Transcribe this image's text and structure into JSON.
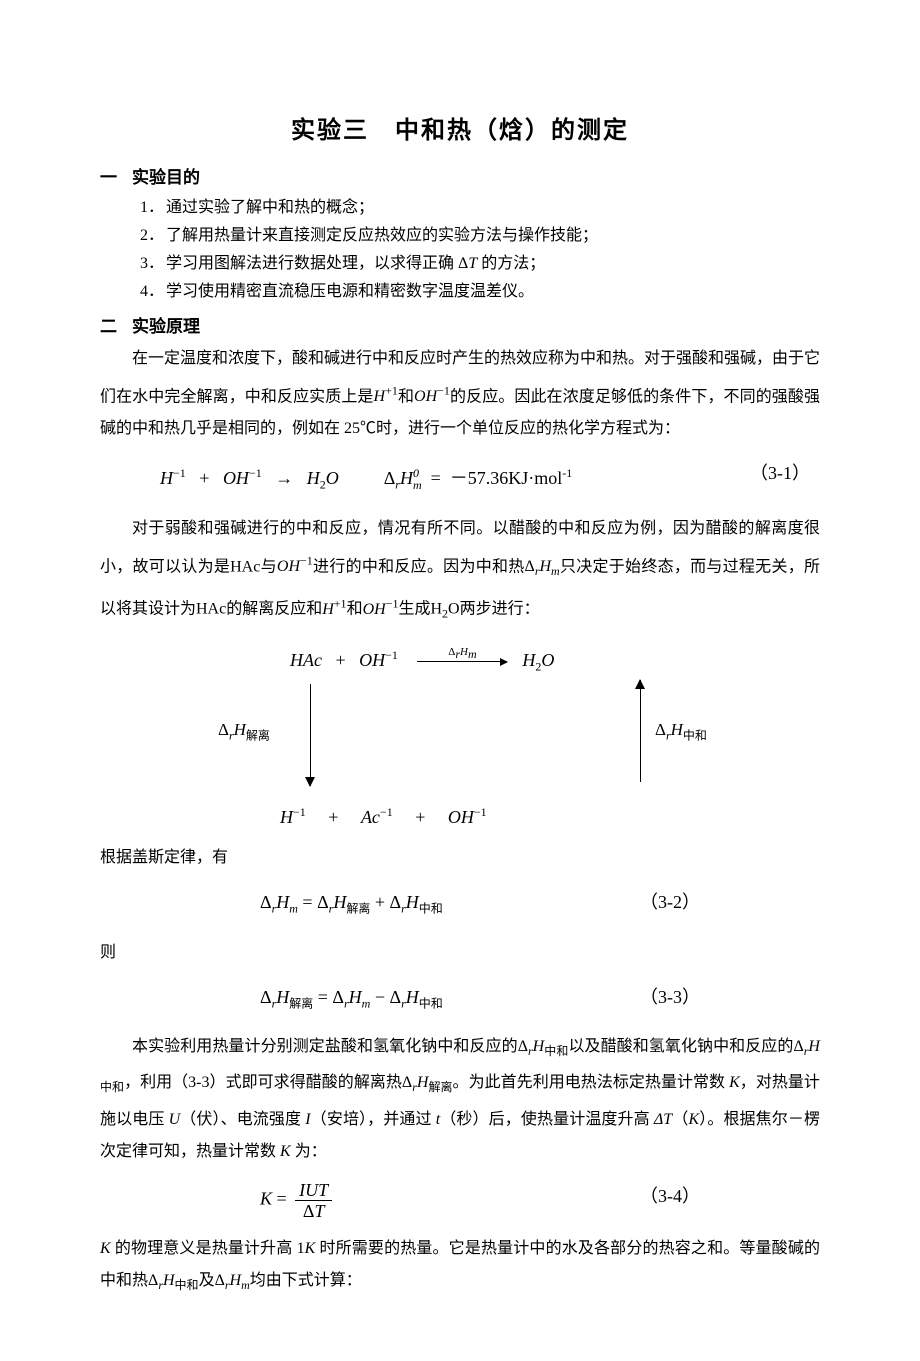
{
  "title": "实验三　中和热（焓）的测定",
  "s1_head_num": "一",
  "s1_head": "实验目的",
  "obj1": "通过实验了解中和热的概念；",
  "obj2": "了解用热量计来直接测定反应热效应的实验方法与操作技能；",
  "obj3_a": "学习用图解法进行数据处理，以求得正确 Δ",
  "obj3_b": " 的方法；",
  "obj4": "学习使用精密直流稳压电源和精密数字温度温差仪。",
  "s2_head_num": "二",
  "s2_head": "实验原理",
  "p1": "在一定温度和浓度下，酸和碱进行中和反应时产生的热效应称为中和热。对于强酸和强碱，由于它们在水中完全解离，中和反应实质上是",
  "p1b": "的反应。因此在浓度足够低的条件下，不同的强酸强碱的中和热几乎是相同的，例如在 25℃时，进行一个单位反应的热化学方程式为：",
  "eq1_rhs": "－57.36KJ·mol",
  "eq1_num": "（3-1）",
  "p2a": "对于弱酸和强碱进行的中和反应，情况有所不同。以醋酸的中和反应为例，因为醋酸的解离度很小，故可以认为是HAc与",
  "p2b": "进行的中和反应。因为中和热",
  "p2c": "只决定于始终态，而与过程无关，所以将其设计为HAc的解离反应和",
  "p2d": "生成H",
  "p2e": "O两步进行：",
  "cycle_top_lbl": "Δ",
  "p3": "根据盖斯定律，有",
  "eq2_num": "（3-2）",
  "p4": "则",
  "eq3_num": "（3-3）",
  "p5a": "本实验利用热量计分别测定盐酸和氢氧化钠中和反应的",
  "p5b": "以及醋酸和氢氧化钠中和反应的",
  "p5c": "，利用（3-3）式即可求得醋酸的解离热",
  "p5d": "。为此首先利用电热法标定热量计常数",
  "p5e": "，对热量计施以电压",
  "p5f": "（伏）、电流强度",
  "p5g": "（安培），并通过",
  "p5h": "（秒）后，使热量计温度升高",
  "p5i": "（",
  "p5j": "）。根据焦尔－楞次定律可知，热量计常数",
  "p5k": "为：",
  "eq4_num": "（3-4）",
  "p6a": "的物理意义是热量计升高 1",
  "p6b": " 时所需要的热量。它是热量计中的水及各部分的热容之和。等量酸碱的中和热",
  "p6c": "及",
  "p6d": "均由下式计算："
}
